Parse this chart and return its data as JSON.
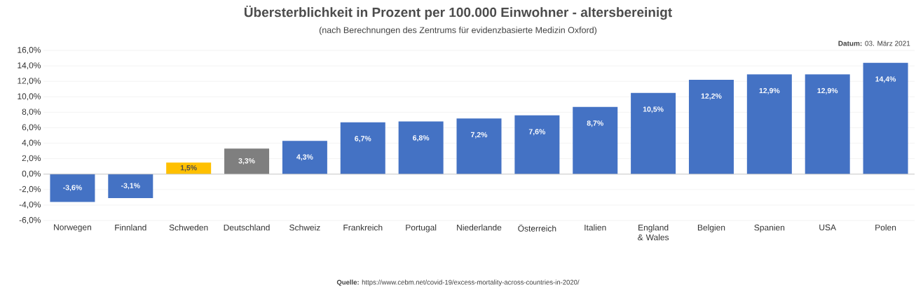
{
  "chart_data": {
    "type": "bar",
    "title": "Übersterblichkeit in Prozent per 100.000 Einwohner - altersbereinigt",
    "subtitle": "(nach Berechnungen des Zentrums für evidenzbasierte Medizin Oxford)",
    "categories": [
      "Norwegen",
      "Finnland",
      "Schweden",
      "Deutschland",
      "Schweiz",
      "Frankreich",
      "Portugal",
      "Niederlande",
      "Österreich",
      "Italien",
      "England & Wales",
      "Belgien",
      "Spanien",
      "USA",
      "Polen"
    ],
    "values": [
      -3.6,
      -3.1,
      1.5,
      3.3,
      4.3,
      6.7,
      6.8,
      7.2,
      7.6,
      8.7,
      10.5,
      12.2,
      12.9,
      12.9,
      14.4
    ],
    "value_labels": [
      "-3,6%",
      "-3,1%",
      "1,5%",
      "3,3%",
      "4,3%",
      "6,7%",
      "6,8%",
      "7,2%",
      "7,6%",
      "8,7%",
      "10,5%",
      "12,2%",
      "12,9%",
      "12,9%",
      "14,4%"
    ],
    "colors": [
      "#4472c4",
      "#4472c4",
      "#ffc000",
      "#7f7f7f",
      "#4472c4",
      "#4472c4",
      "#4472c4",
      "#4472c4",
      "#4472c4",
      "#4472c4",
      "#4472c4",
      "#4472c4",
      "#4472c4",
      "#4472c4",
      "#4472c4"
    ],
    "ylim": [
      -6,
      16
    ],
    "yticks": [
      {
        "value": -6,
        "label": "-6,0%"
      },
      {
        "value": -4,
        "label": "-4,0%"
      },
      {
        "value": -2,
        "label": "-2,0%"
      },
      {
        "value": 0,
        "label": "0,0%"
      },
      {
        "value": 2,
        "label": "2,0%"
      },
      {
        "value": 4,
        "label": "4,0%"
      },
      {
        "value": 6,
        "label": "6,0%"
      },
      {
        "value": 8,
        "label": "8,0%"
      },
      {
        "value": 10,
        "label": "10,0%"
      },
      {
        "value": 12,
        "label": "12,0%"
      },
      {
        "value": 14,
        "label": "14,0%"
      },
      {
        "value": 16,
        "label": "16,0%"
      }
    ],
    "grid": "y",
    "annotations": [
      "**Datum:** 03. März 2021",
      "**Quelle:** https://www.cebm.net/covid-19/excess-mortality-across-countries-in-2020/"
    ]
  }
}
